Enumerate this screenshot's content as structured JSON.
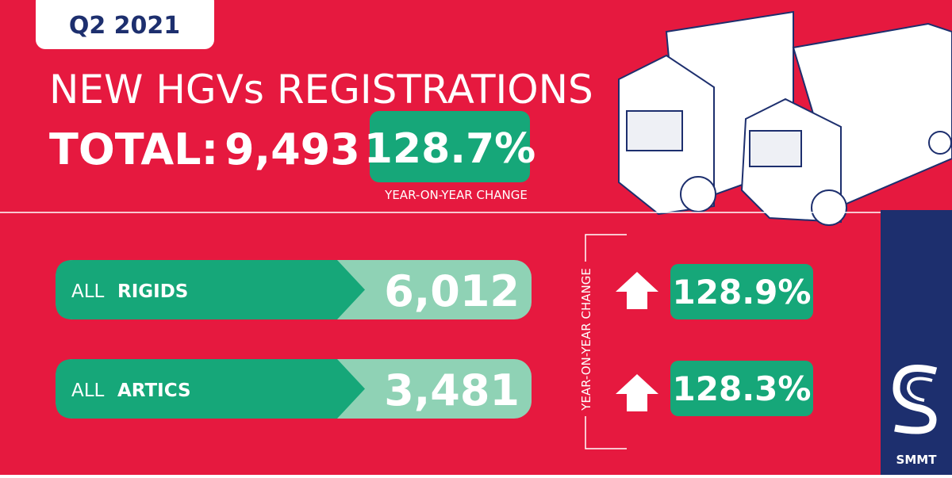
{
  "header": {
    "period": "Q2 2021",
    "title": "NEW HGVs REGISTRATIONS",
    "total_label": "TOTAL:",
    "total_value": "9,493",
    "total_change": "128.7%",
    "change_label": "YEAR-ON-YEAR CHANGE"
  },
  "rows": [
    {
      "prefix": "ALL",
      "name": "RIGIDS",
      "value": "6,012",
      "change": "128.9%"
    },
    {
      "prefix": "ALL",
      "name": "ARTICS",
      "value": "3,481",
      "change": "128.3%"
    }
  ],
  "side_label": "YEAR-ON-YEAR CHANGE",
  "logo": "SMMT"
}
